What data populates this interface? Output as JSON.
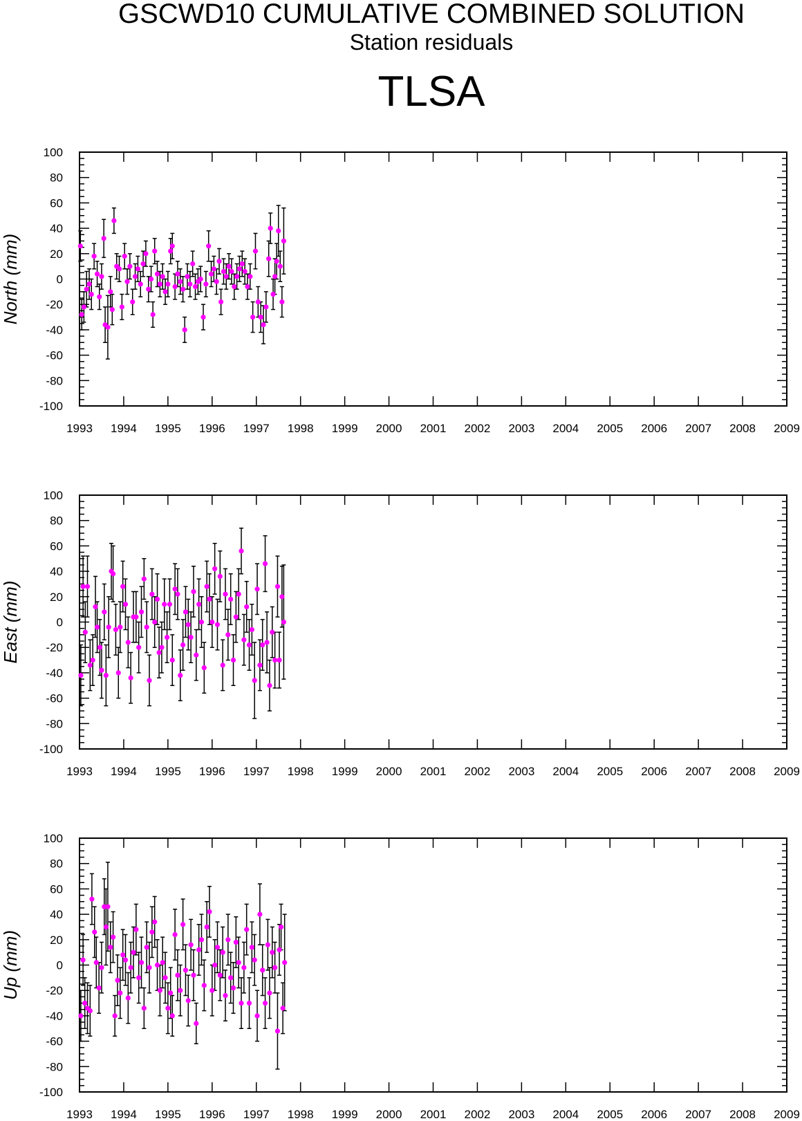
{
  "header": {
    "title": "GSCWD10 CUMULATIVE COMBINED SOLUTION",
    "subtitle": "Station residuals",
    "station": "TLSA"
  },
  "colors": {
    "point": "#ff00ff",
    "errorbar": "#000000",
    "axis": "#000000"
  },
  "chart_data": [
    {
      "type": "scatter",
      "ylabel": "North (mm)",
      "xlim": [
        1993,
        2009
      ],
      "ylim": [
        -100,
        100
      ],
      "xticks": [
        "1993",
        "1994",
        "1995",
        "1996",
        "1997",
        "1998",
        "1999",
        "2000",
        "2001",
        "2002",
        "2003",
        "2004",
        "2005",
        "2006",
        "2007",
        "2008",
        "2009"
      ],
      "yticks": [
        "100",
        "80",
        "60",
        "40",
        "20",
        "0",
        "-20",
        "-40",
        "-60",
        "-80",
        "-100"
      ],
      "points": [
        [
          1993.02,
          26,
          12
        ],
        [
          1993.05,
          -28,
          12
        ],
        [
          1993.1,
          -22,
          12
        ],
        [
          1993.16,
          -8,
          14
        ],
        [
          1993.22,
          -4,
          12
        ],
        [
          1993.27,
          -12,
          12
        ],
        [
          1993.33,
          18,
          10
        ],
        [
          1993.4,
          4,
          10
        ],
        [
          1993.45,
          -14,
          10
        ],
        [
          1993.5,
          2,
          10
        ],
        [
          1993.55,
          32,
          15
        ],
        [
          1993.58,
          -36,
          14
        ],
        [
          1993.64,
          -38,
          25
        ],
        [
          1993.7,
          -10,
          12
        ],
        [
          1993.74,
          -24,
          12
        ],
        [
          1993.78,
          46,
          10
        ],
        [
          1993.84,
          10,
          10
        ],
        [
          1993.9,
          8,
          10
        ],
        [
          1993.96,
          -22,
          10
        ],
        [
          1994.02,
          18,
          10
        ],
        [
          1994.08,
          -2,
          10
        ],
        [
          1994.14,
          10,
          10
        ],
        [
          1994.2,
          -18,
          10
        ],
        [
          1994.26,
          2,
          10
        ],
        [
          1994.32,
          8,
          10
        ],
        [
          1994.38,
          -4,
          10
        ],
        [
          1994.44,
          12,
          10
        ],
        [
          1994.5,
          20,
          10
        ],
        [
          1994.56,
          -8,
          10
        ],
        [
          1994.62,
          0,
          10
        ],
        [
          1994.66,
          -28,
          10
        ],
        [
          1994.7,
          22,
          10
        ],
        [
          1994.76,
          4,
          10
        ],
        [
          1994.82,
          -4,
          10
        ],
        [
          1994.88,
          2,
          10
        ],
        [
          1994.94,
          -10,
          10
        ],
        [
          1995.0,
          -4,
          10
        ],
        [
          1995.06,
          22,
          10
        ],
        [
          1995.1,
          26,
          10
        ],
        [
          1995.16,
          -6,
          10
        ],
        [
          1995.22,
          4,
          10
        ],
        [
          1995.28,
          -2,
          10
        ],
        [
          1995.34,
          -8,
          10
        ],
        [
          1995.38,
          -40,
          10
        ],
        [
          1995.44,
          2,
          10
        ],
        [
          1995.5,
          -4,
          10
        ],
        [
          1995.56,
          12,
          10
        ],
        [
          1995.62,
          -6,
          10
        ],
        [
          1995.68,
          -2,
          10
        ],
        [
          1995.74,
          0,
          10
        ],
        [
          1995.8,
          -30,
          10
        ],
        [
          1995.86,
          -4,
          10
        ],
        [
          1995.92,
          26,
          12
        ],
        [
          1995.98,
          4,
          10
        ],
        [
          1996.04,
          8,
          10
        ],
        [
          1996.1,
          -2,
          10
        ],
        [
          1996.16,
          14,
          10
        ],
        [
          1996.2,
          -18,
          10
        ],
        [
          1996.26,
          6,
          10
        ],
        [
          1996.32,
          2,
          10
        ],
        [
          1996.38,
          10,
          10
        ],
        [
          1996.44,
          6,
          10
        ],
        [
          1996.5,
          -6,
          10
        ],
        [
          1996.56,
          2,
          10
        ],
        [
          1996.62,
          8,
          10
        ],
        [
          1996.68,
          12,
          10
        ],
        [
          1996.74,
          6,
          10
        ],
        [
          1996.8,
          -6,
          10
        ],
        [
          1996.86,
          2,
          10
        ],
        [
          1996.92,
          -30,
          12
        ],
        [
          1996.98,
          22,
          14
        ],
        [
          1997.04,
          -18,
          12
        ],
        [
          1997.1,
          -30,
          12
        ],
        [
          1997.16,
          -36,
          15
        ],
        [
          1997.22,
          -22,
          12
        ],
        [
          1997.28,
          16,
          14
        ],
        [
          1997.32,
          40,
          12
        ],
        [
          1997.38,
          -12,
          12
        ],
        [
          1997.42,
          2,
          14
        ],
        [
          1997.46,
          14,
          14
        ],
        [
          1997.5,
          38,
          20
        ],
        [
          1997.54,
          10,
          12
        ],
        [
          1997.58,
          -18,
          12
        ],
        [
          1997.62,
          30,
          26
        ]
      ]
    },
    {
      "type": "scatter",
      "ylabel": "East (mm)",
      "xlim": [
        1993,
        2009
      ],
      "ylim": [
        -100,
        100
      ],
      "xticks": [
        "1993",
        "1994",
        "1995",
        "1996",
        "1997",
        "1998",
        "1999",
        "2000",
        "2001",
        "2002",
        "2003",
        "2004",
        "2005",
        "2006",
        "2007",
        "2008",
        "2009"
      ],
      "yticks": [
        "100",
        "80",
        "60",
        "40",
        "20",
        "0",
        "-20",
        "-40",
        "-60",
        "-80",
        "-100"
      ],
      "points": [
        [
          1993.03,
          -42,
          24
        ],
        [
          1993.08,
          28,
          24
        ],
        [
          1993.13,
          -8,
          24
        ],
        [
          1993.18,
          28,
          24
        ],
        [
          1993.24,
          -34,
          20
        ],
        [
          1993.3,
          -30,
          20
        ],
        [
          1993.36,
          12,
          24
        ],
        [
          1993.4,
          -4,
          20
        ],
        [
          1993.46,
          -20,
          22
        ],
        [
          1993.5,
          -38,
          22
        ],
        [
          1993.56,
          8,
          22
        ],
        [
          1993.6,
          -42,
          24
        ],
        [
          1993.66,
          -4,
          24
        ],
        [
          1993.72,
          40,
          22
        ],
        [
          1993.76,
          38,
          22
        ],
        [
          1993.82,
          -6,
          20
        ],
        [
          1993.88,
          -40,
          20
        ],
        [
          1993.92,
          -4,
          20
        ],
        [
          1993.98,
          28,
          20
        ],
        [
          1994.04,
          14,
          20
        ],
        [
          1994.1,
          -16,
          20
        ],
        [
          1994.16,
          -44,
          20
        ],
        [
          1994.22,
          4,
          20
        ],
        [
          1994.28,
          4,
          20
        ],
        [
          1994.34,
          -20,
          20
        ],
        [
          1994.4,
          8,
          20
        ],
        [
          1994.46,
          34,
          16
        ],
        [
          1994.52,
          -4,
          20
        ],
        [
          1994.58,
          -46,
          20
        ],
        [
          1994.64,
          22,
          20
        ],
        [
          1994.7,
          0,
          20
        ],
        [
          1994.76,
          18,
          20
        ],
        [
          1994.8,
          -24,
          20
        ],
        [
          1994.86,
          -20,
          20
        ],
        [
          1994.92,
          14,
          20
        ],
        [
          1994.98,
          -12,
          20
        ],
        [
          1995.04,
          14,
          20
        ],
        [
          1995.1,
          -30,
          20
        ],
        [
          1995.16,
          26,
          20
        ],
        [
          1995.22,
          22,
          20
        ],
        [
          1995.28,
          -42,
          20
        ],
        [
          1995.34,
          -18,
          20
        ],
        [
          1995.4,
          8,
          20
        ],
        [
          1995.46,
          -2,
          20
        ],
        [
          1995.52,
          -12,
          20
        ],
        [
          1995.58,
          24,
          20
        ],
        [
          1995.64,
          -26,
          20
        ],
        [
          1995.7,
          14,
          20
        ],
        [
          1995.76,
          0,
          20
        ],
        [
          1995.82,
          -36,
          20
        ],
        [
          1995.88,
          28,
          20
        ],
        [
          1995.94,
          18,
          20
        ],
        [
          1996.0,
          0,
          20
        ],
        [
          1996.06,
          42,
          20
        ],
        [
          1996.12,
          -2,
          20
        ],
        [
          1996.18,
          36,
          20
        ],
        [
          1996.24,
          -34,
          20
        ],
        [
          1996.3,
          22,
          20
        ],
        [
          1996.36,
          -10,
          20
        ],
        [
          1996.42,
          18,
          20
        ],
        [
          1996.48,
          -30,
          20
        ],
        [
          1996.54,
          4,
          20
        ],
        [
          1996.6,
          22,
          20
        ],
        [
          1996.66,
          56,
          18
        ],
        [
          1996.72,
          -14,
          20
        ],
        [
          1996.78,
          12,
          20
        ],
        [
          1996.84,
          -18,
          20
        ],
        [
          1996.9,
          -6,
          20
        ],
        [
          1996.96,
          -46,
          30
        ],
        [
          1997.02,
          26,
          20
        ],
        [
          1997.08,
          -34,
          20
        ],
        [
          1997.14,
          -18,
          20
        ],
        [
          1997.2,
          46,
          22
        ],
        [
          1997.24,
          -16,
          24
        ],
        [
          1997.3,
          -50,
          20
        ],
        [
          1997.36,
          -8,
          20
        ],
        [
          1997.42,
          -30,
          22
        ],
        [
          1997.48,
          28,
          24
        ],
        [
          1997.52,
          -30,
          22
        ],
        [
          1997.58,
          20,
          24
        ],
        [
          1997.62,
          0,
          45
        ]
      ]
    },
    {
      "type": "scatter",
      "ylabel": "Up (mm)",
      "xlim": [
        1993,
        2009
      ],
      "ylim": [
        -100,
        100
      ],
      "xticks": [
        "1993",
        "1994",
        "1995",
        "1996",
        "1997",
        "1998",
        "1999",
        "2000",
        "2001",
        "2002",
        "2003",
        "2004",
        "2005",
        "2006",
        "2007",
        "2008",
        "2009"
      ],
      "yticks": [
        "100",
        "80",
        "60",
        "40",
        "20",
        "0",
        "-20",
        "-40",
        "-60",
        "-80",
        "-100"
      ],
      "points": [
        [
          1993.03,
          -40,
          20
        ],
        [
          1993.08,
          4,
          20
        ],
        [
          1993.12,
          -30,
          20
        ],
        [
          1993.18,
          -34,
          20
        ],
        [
          1993.24,
          -36,
          20
        ],
        [
          1993.28,
          52,
          20
        ],
        [
          1993.34,
          26,
          20
        ],
        [
          1993.38,
          2,
          20
        ],
        [
          1993.44,
          -18,
          20
        ],
        [
          1993.5,
          -2,
          20
        ],
        [
          1993.56,
          46,
          22
        ],
        [
          1993.6,
          30,
          30
        ],
        [
          1993.64,
          46,
          35
        ],
        [
          1993.7,
          14,
          20
        ],
        [
          1993.76,
          22,
          20
        ],
        [
          1993.8,
          -40,
          16
        ],
        [
          1993.86,
          -12,
          20
        ],
        [
          1993.92,
          -22,
          20
        ],
        [
          1993.98,
          8,
          20
        ],
        [
          1994.04,
          4,
          20
        ],
        [
          1994.1,
          -26,
          20
        ],
        [
          1994.16,
          -2,
          20
        ],
        [
          1994.22,
          10,
          20
        ],
        [
          1994.28,
          28,
          20
        ],
        [
          1994.34,
          -10,
          20
        ],
        [
          1994.4,
          2,
          20
        ],
        [
          1994.46,
          -34,
          16
        ],
        [
          1994.52,
          14,
          20
        ],
        [
          1994.58,
          -2,
          20
        ],
        [
          1994.64,
          26,
          20
        ],
        [
          1994.7,
          34,
          20
        ],
        [
          1994.76,
          0,
          20
        ],
        [
          1994.82,
          -20,
          20
        ],
        [
          1994.88,
          2,
          20
        ],
        [
          1994.94,
          -10,
          20
        ],
        [
          1995.0,
          -34,
          20
        ],
        [
          1995.06,
          -22,
          20
        ],
        [
          1995.1,
          -40,
          16
        ],
        [
          1995.16,
          24,
          20
        ],
        [
          1995.22,
          -8,
          20
        ],
        [
          1995.28,
          -20,
          20
        ],
        [
          1995.34,
          32,
          20
        ],
        [
          1995.4,
          -4,
          20
        ],
        [
          1995.46,
          -28,
          20
        ],
        [
          1995.52,
          16,
          20
        ],
        [
          1995.58,
          -8,
          20
        ],
        [
          1995.64,
          -46,
          16
        ],
        [
          1995.7,
          12,
          20
        ],
        [
          1995.76,
          20,
          20
        ],
        [
          1995.82,
          -16,
          20
        ],
        [
          1995.88,
          30,
          20
        ],
        [
          1995.94,
          42,
          20
        ],
        [
          1996.0,
          -20,
          20
        ],
        [
          1996.06,
          0,
          20
        ],
        [
          1996.12,
          14,
          20
        ],
        [
          1996.18,
          -8,
          20
        ],
        [
          1996.24,
          10,
          20
        ],
        [
          1996.3,
          -24,
          20
        ],
        [
          1996.36,
          20,
          20
        ],
        [
          1996.42,
          -10,
          20
        ],
        [
          1996.48,
          -18,
          20
        ],
        [
          1996.54,
          18,
          20
        ],
        [
          1996.6,
          2,
          20
        ],
        [
          1996.66,
          -30,
          20
        ],
        [
          1996.72,
          -2,
          20
        ],
        [
          1996.78,
          28,
          20
        ],
        [
          1996.84,
          -30,
          20
        ],
        [
          1996.9,
          14,
          20
        ],
        [
          1996.96,
          4,
          20
        ],
        [
          1997.02,
          -40,
          20
        ],
        [
          1997.08,
          40,
          24
        ],
        [
          1997.14,
          -4,
          20
        ],
        [
          1997.2,
          -30,
          20
        ],
        [
          1997.26,
          16,
          20
        ],
        [
          1997.3,
          -22,
          20
        ],
        [
          1997.36,
          10,
          20
        ],
        [
          1997.42,
          -2,
          20
        ],
        [
          1997.48,
          -52,
          30
        ],
        [
          1997.52,
          12,
          20
        ],
        [
          1997.56,
          30,
          18
        ],
        [
          1997.6,
          -34,
          20
        ],
        [
          1997.64,
          2,
          38
        ]
      ]
    }
  ]
}
